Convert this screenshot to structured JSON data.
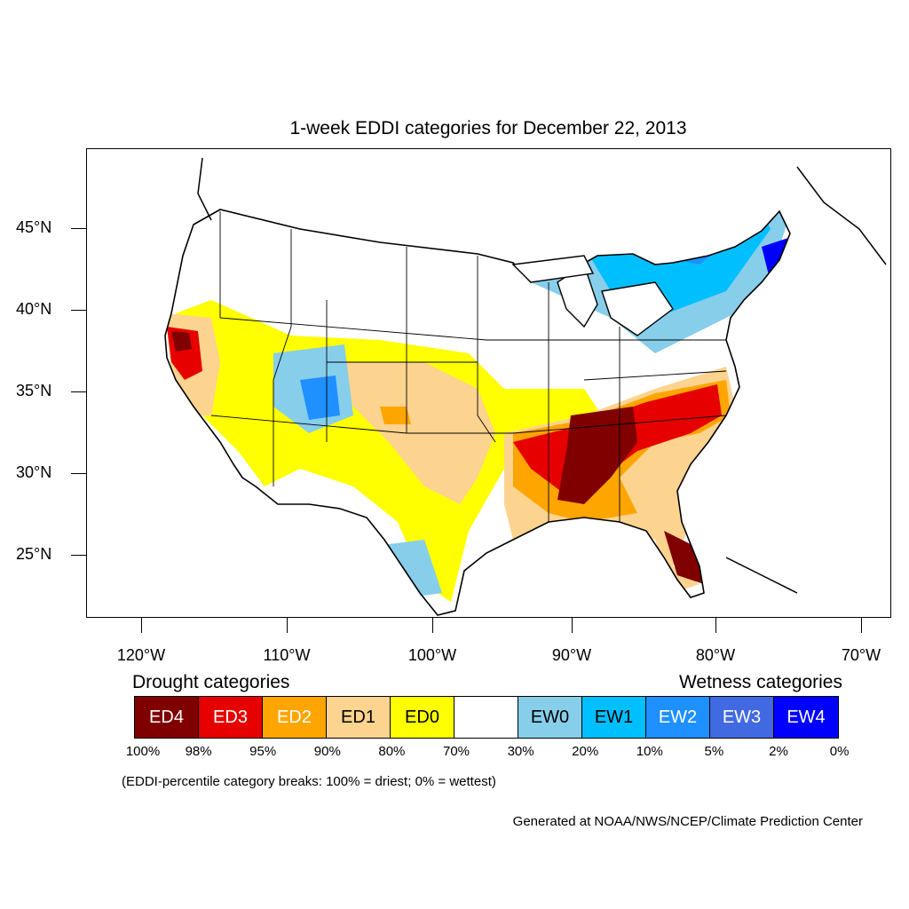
{
  "title": "1-week EDDI categories for December 22, 2013",
  "axes": {
    "lat_labels": [
      "45°N",
      "40°N",
      "35°N",
      "30°N",
      "25°N"
    ],
    "lon_labels": [
      "120°W",
      "110°W",
      "100°W",
      "90°W",
      "80°W",
      "70°W"
    ]
  },
  "legend": {
    "drought_header": "Drought categories",
    "wetness_header": "Wetness categories",
    "categories": [
      {
        "label": "ED4",
        "color": "#800000",
        "text_color": "#ffffff"
      },
      {
        "label": "ED3",
        "color": "#e60000",
        "text_color": "#ffffff"
      },
      {
        "label": "ED2",
        "color": "#ffa500",
        "text_color": "#ffffff"
      },
      {
        "label": "ED1",
        "color": "#fcd38f",
        "text_color": "#000000"
      },
      {
        "label": "ED0",
        "color": "#ffff00",
        "text_color": "#000000"
      },
      {
        "label": "",
        "color": "#ffffff",
        "text_color": "#000000"
      },
      {
        "label": "EW0",
        "color": "#87ceeb",
        "text_color": "#000000"
      },
      {
        "label": "EW1",
        "color": "#00bfff",
        "text_color": "#000000"
      },
      {
        "label": "EW2",
        "color": "#1e90ff",
        "text_color": "#ffffff"
      },
      {
        "label": "EW3",
        "color": "#4169e1",
        "text_color": "#ffffff"
      },
      {
        "label": "EW4",
        "color": "#0000ff",
        "text_color": "#ffffff"
      }
    ],
    "percentiles": [
      "100%",
      "98%",
      "95%",
      "90%",
      "80%",
      "70%",
      "30%",
      "20%",
      "10%",
      "5%",
      "2%",
      "0%"
    ],
    "note": "(EDDI-percentile category breaks: 100% = driest; 0% = wettest)"
  },
  "credit": "Generated at NOAA/NWS/NCEP/Climate Prediction Center"
}
